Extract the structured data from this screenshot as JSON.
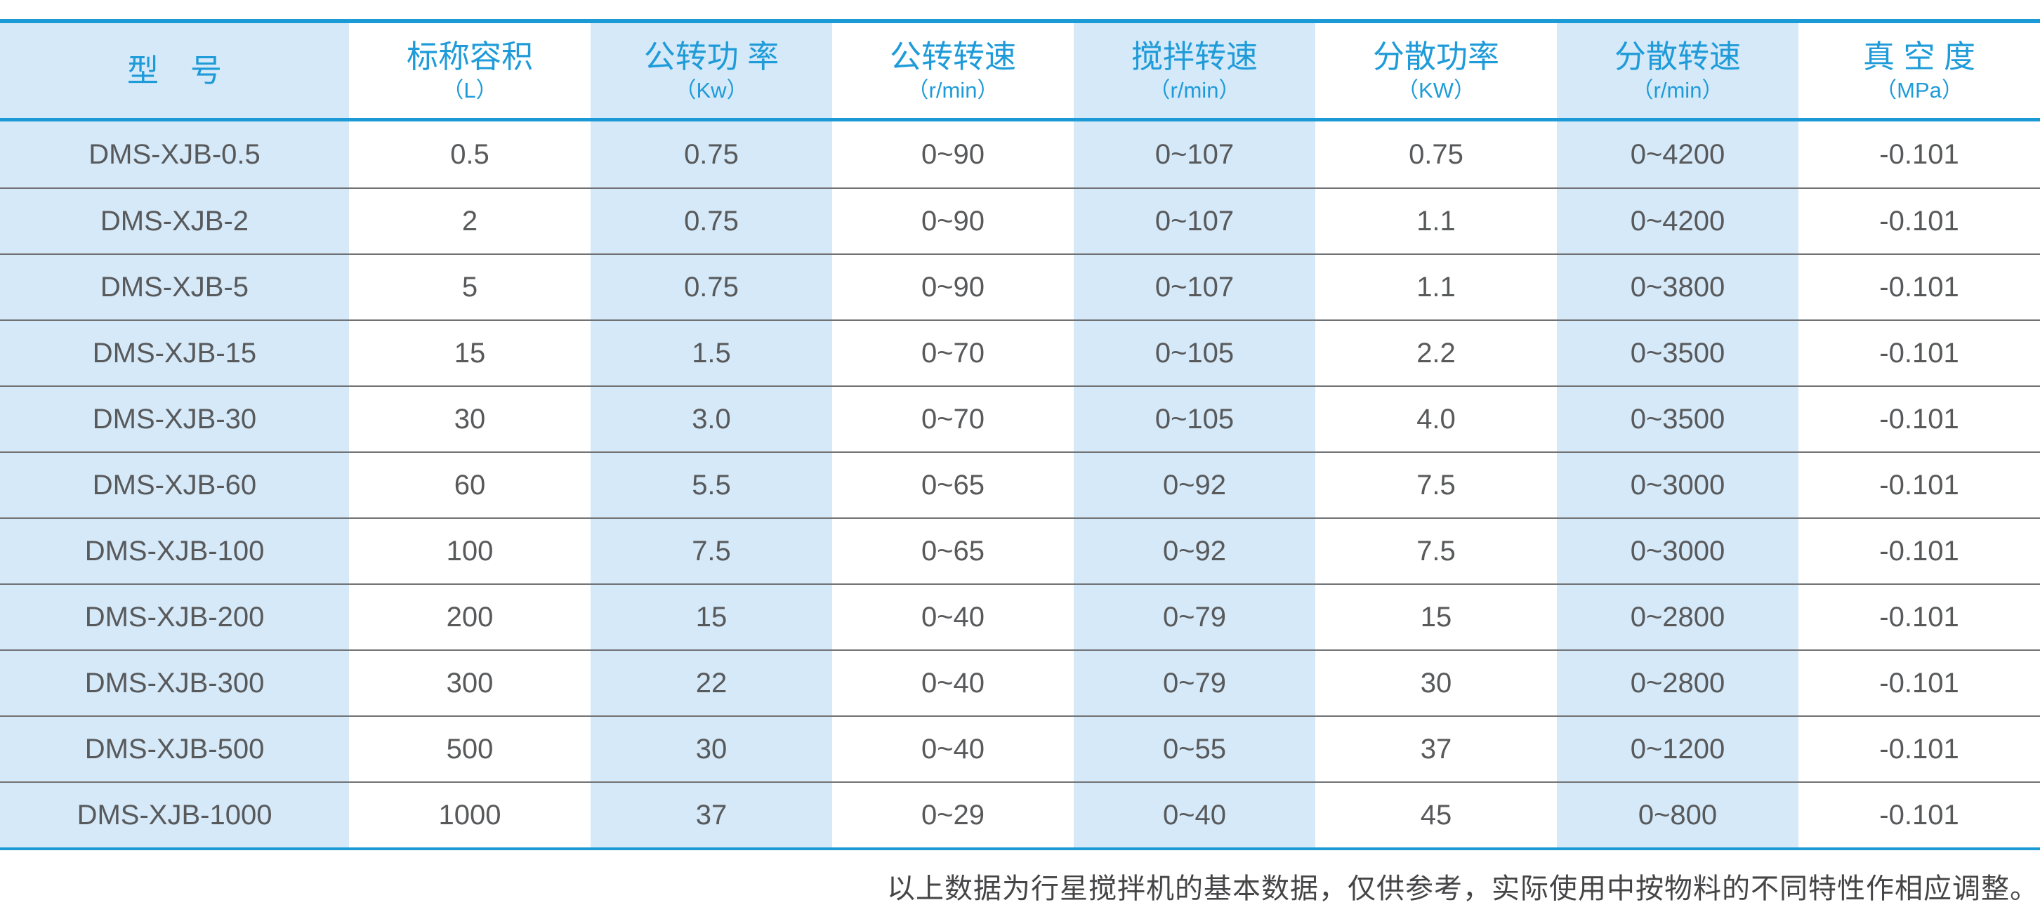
{
  "colors": {
    "accent_blue_line": "#1b9ad5",
    "header_text_blue": "#1e9bd8",
    "stripe_light_blue": "#d5e9f8",
    "body_text_gray": "#58595b",
    "row_separator_gray": "#717274",
    "footnote_gray": "#454547"
  },
  "table": {
    "columns": [
      {
        "title": "型　号",
        "unit": ""
      },
      {
        "title": "标称容积",
        "unit": "（L）"
      },
      {
        "title": "公转功 率",
        "unit": "（Kw）"
      },
      {
        "title": "公转转速",
        "unit": "（r/min）"
      },
      {
        "title": "搅拌转速",
        "unit": "（r/min）"
      },
      {
        "title": "分散功率",
        "unit": "（KW）"
      },
      {
        "title": "分散转速",
        "unit": "（r/min）"
      },
      {
        "title": "真 空 度",
        "unit": "（MPa）"
      }
    ],
    "rows": [
      [
        "DMS-XJB-0.5",
        "0.5",
        "0.75",
        "0~90",
        "0~107",
        "0.75",
        "0~4200",
        "-0.101"
      ],
      [
        "DMS-XJB-2",
        "2",
        "0.75",
        "0~90",
        "0~107",
        "1.1",
        "0~4200",
        "-0.101"
      ],
      [
        "DMS-XJB-5",
        "5",
        "0.75",
        "0~90",
        "0~107",
        "1.1",
        "0~3800",
        "-0.101"
      ],
      [
        "DMS-XJB-15",
        "15",
        "1.5",
        "0~70",
        "0~105",
        "2.2",
        "0~3500",
        "-0.101"
      ],
      [
        "DMS-XJB-30",
        "30",
        "3.0",
        "0~70",
        "0~105",
        "4.0",
        "0~3500",
        "-0.101"
      ],
      [
        "DMS-XJB-60",
        "60",
        "5.5",
        "0~65",
        "0~92",
        "7.5",
        "0~3000",
        "-0.101"
      ],
      [
        "DMS-XJB-100",
        "100",
        "7.5",
        "0~65",
        "0~92",
        "7.5",
        "0~3000",
        "-0.101"
      ],
      [
        "DMS-XJB-200",
        "200",
        "15",
        "0~40",
        "0~79",
        "15",
        "0~2800",
        "-0.101"
      ],
      [
        "DMS-XJB-300",
        "300",
        "22",
        "0~40",
        "0~79",
        "30",
        "0~2800",
        "-0.101"
      ],
      [
        "DMS-XJB-500",
        "500",
        "30",
        "0~40",
        "0~55",
        "37",
        "0~1200",
        "-0.101"
      ],
      [
        "DMS-XJB-1000",
        "1000",
        "37",
        "0~29",
        "0~40",
        "45",
        "0~800",
        "-0.101"
      ]
    ]
  },
  "footnote": "以上数据为行星搅拌机的基本数据，仅供参考，实际使用中按物料的不同特性作相应调整。"
}
